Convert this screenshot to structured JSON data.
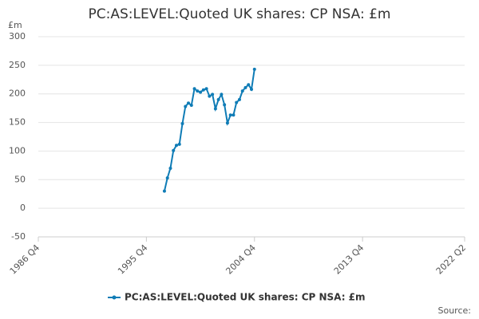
{
  "chart_data": {
    "type": "line",
    "title": "PC:AS:LEVEL:Quoted UK shares: CP NSA: £m",
    "y_label": "£m",
    "source": "Source:",
    "x": [
      "1997 Q2",
      "1997 Q3",
      "1997 Q4",
      "1998 Q1",
      "1998 Q2",
      "1998 Q3",
      "1998 Q4",
      "1999 Q1",
      "1999 Q2",
      "1999 Q3",
      "1999 Q4",
      "2000 Q1",
      "2000 Q2",
      "2000 Q3",
      "2000 Q4",
      "2001 Q1",
      "2001 Q2",
      "2001 Q3",
      "2001 Q4",
      "2002 Q1",
      "2002 Q2",
      "2002 Q3",
      "2002 Q4",
      "2003 Q1",
      "2003 Q2",
      "2003 Q3",
      "2003 Q4",
      "2004 Q1",
      "2004 Q2",
      "2004 Q3",
      "2004 Q4"
    ],
    "series": [
      {
        "name": "PC:AS:LEVEL:Quoted UK shares: CP NSA: £m",
        "color": "#0f7cb6",
        "values": [
          30,
          53,
          70,
          101,
          110,
          112,
          148,
          178,
          184,
          180,
          209,
          205,
          203,
          207,
          209,
          196,
          199,
          174,
          190,
          199,
          181,
          149,
          163,
          163,
          185,
          190,
          205,
          211,
          216,
          208,
          243
        ]
      }
    ],
    "xlim": [
      "1986 Q4",
      "2022 Q2"
    ],
    "xticks": [
      "1986 Q4",
      "1995 Q4",
      "2004 Q4",
      "2013 Q4",
      "2022 Q2"
    ],
    "ylim": [
      -50,
      300
    ],
    "yticks": [
      -50,
      0,
      50,
      100,
      150,
      200,
      250,
      300
    ],
    "grid": true,
    "legend": "bottom"
  }
}
